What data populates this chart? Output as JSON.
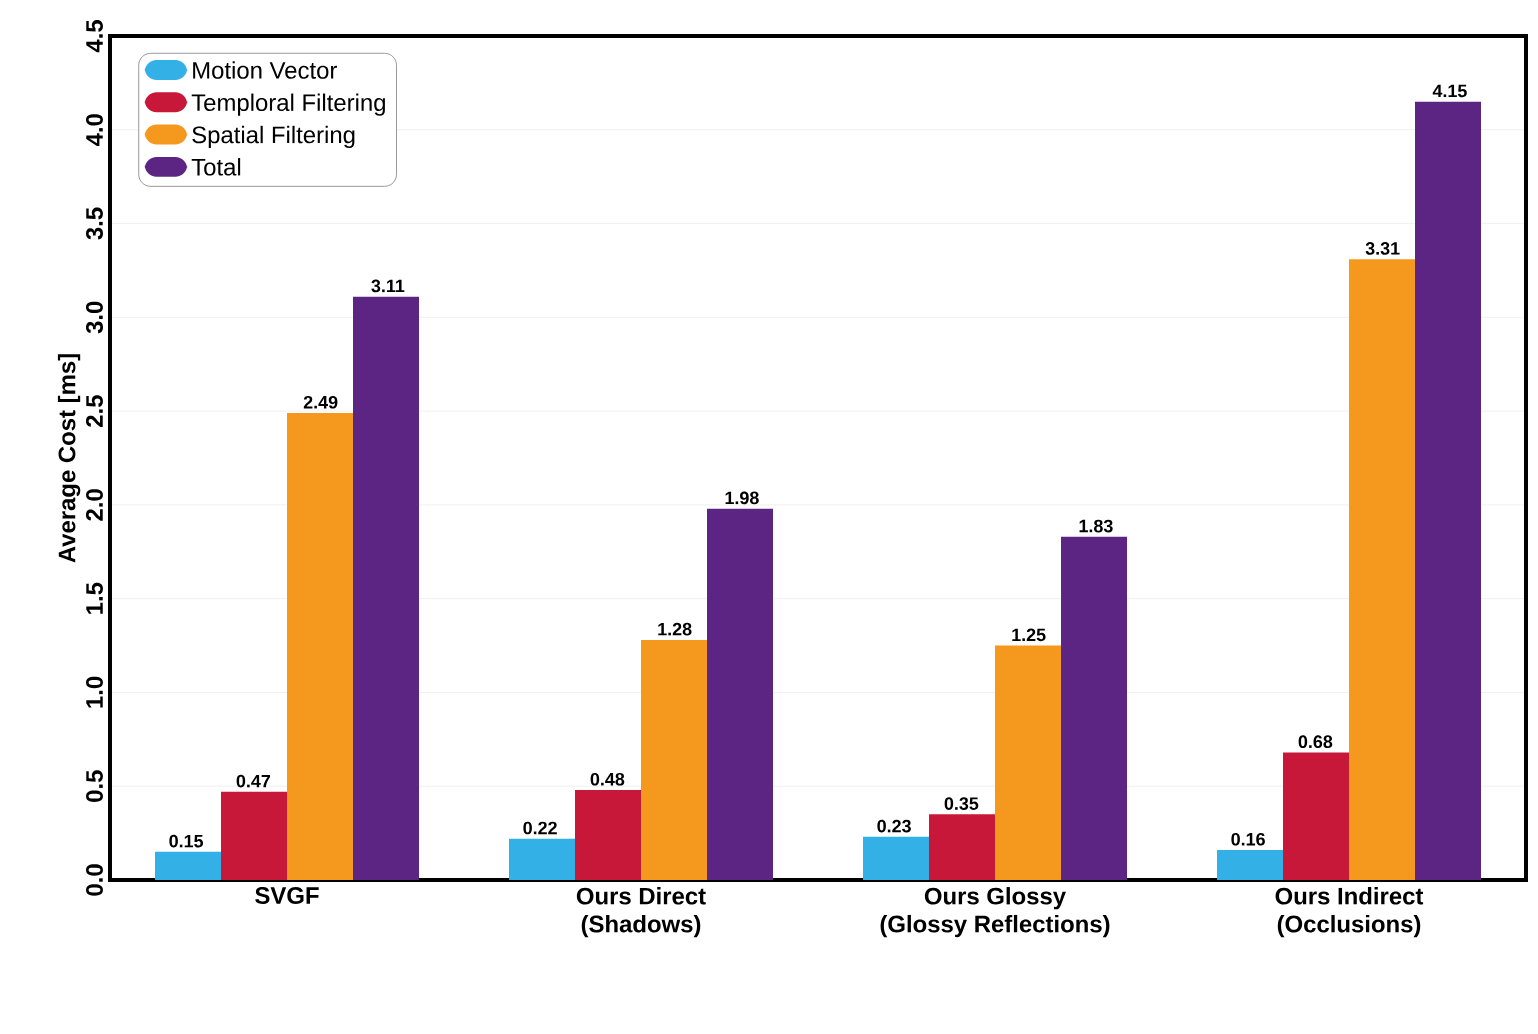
{
  "chart_data": {
    "type": "bar",
    "ylabel": "Average Cost [ms]",
    "categories": [
      "SVGF",
      "Ours Direct (Shadows)",
      "Ours Glossy (Glossy Reflections)",
      "Ours Indirect (Occlusions)"
    ],
    "series": [
      {
        "name": "Motion Vector",
        "color": "#33b1e6",
        "values": [
          0.15,
          0.22,
          0.23,
          0.16
        ]
      },
      {
        "name": "Temploral Filtering",
        "color": "#c8183a",
        "values": [
          0.47,
          0.48,
          0.35,
          0.68
        ]
      },
      {
        "name": "Spatial Filtering",
        "color": "#f4991e",
        "values": [
          2.49,
          1.28,
          1.25,
          3.31
        ]
      },
      {
        "name": "Total",
        "color": "#5c2483",
        "values": [
          3.11,
          1.98,
          1.83,
          4.15
        ]
      }
    ],
    "ylim": [
      0,
      4.5
    ],
    "yticks": [
      {
        "value": 0,
        "label": "0.0"
      },
      0.5,
      {
        "value": 1,
        "label": "1.0"
      },
      1.5,
      {
        "value": 2,
        "label": "2.0"
      },
      2.5,
      {
        "value": 3,
        "label": "3.0"
      },
      3.5,
      {
        "value": 4,
        "label": "4.0"
      },
      4.5
    ],
    "grid": "y",
    "legend": "top left",
    "data_labels": true
  }
}
